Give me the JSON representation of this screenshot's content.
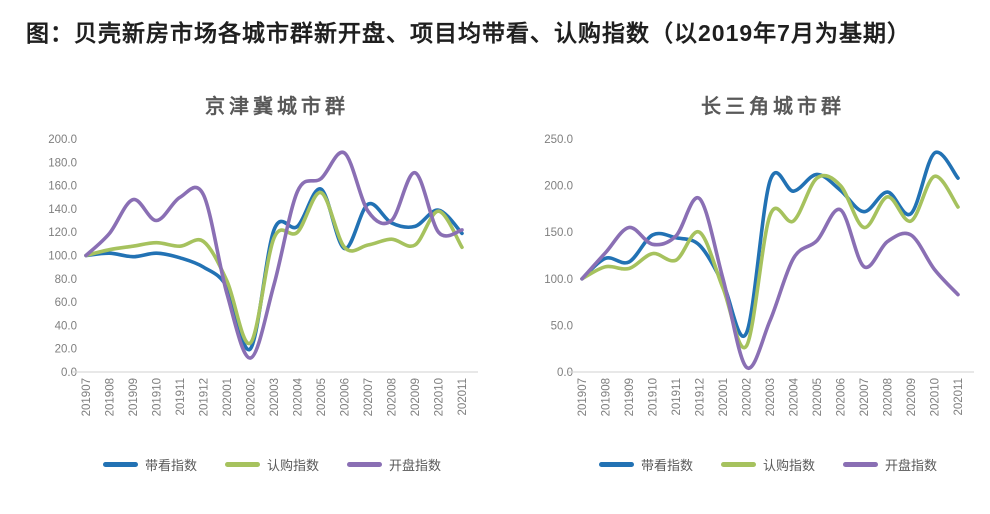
{
  "title": "图：贝壳新房市场各城市群新开盘、项目均带看、认购指数（以2019年7月为基期）",
  "colors": {
    "tour_index": "#2272B4",
    "subscription_index": "#A6C25E",
    "opening_index": "#8A6FB4",
    "axis_line": "#D9D9D9",
    "tick_text": "#7F7F7F",
    "chart_title_text": "#595959",
    "legend_text": "#595959",
    "main_title_text": "#1F1F1F"
  },
  "chart_data": [
    {
      "type": "line",
      "title": "京津冀城市群",
      "x": [
        "201907",
        "201908",
        "201909",
        "201910",
        "201911",
        "201912",
        "202001",
        "202002",
        "202003",
        "202004",
        "202005",
        "202006",
        "202007",
        "202008",
        "202009",
        "202010",
        "202011"
      ],
      "yticks": [
        "0.0",
        "20.0",
        "40.0",
        "60.0",
        "80.0",
        "100.0",
        "120.0",
        "140.0",
        "160.0",
        "180.0",
        "200.0"
      ],
      "ylim": [
        0,
        200
      ],
      "grid": false,
      "legend_position": "bottom",
      "series": [
        {
          "name": "带看指数",
          "id": "tour-index",
          "color": "#2272B4",
          "values": [
            100,
            102,
            99,
            102,
            98,
            90,
            73,
            20,
            122,
            125,
            157,
            106,
            144,
            128,
            125,
            139,
            119
          ]
        },
        {
          "name": "认购指数",
          "id": "subscription-index",
          "color": "#A6C25E",
          "values": [
            100,
            105,
            108,
            111,
            108,
            112,
            78,
            25,
            115,
            120,
            154,
            107,
            109,
            114,
            109,
            138,
            107
          ]
        },
        {
          "name": "开盘指数",
          "id": "opening-index",
          "color": "#8A6FB4",
          "values": [
            100,
            119,
            148,
            130,
            150,
            152,
            67,
            12,
            75,
            155,
            166,
            188,
            138,
            130,
            171,
            120,
            122
          ]
        }
      ]
    },
    {
      "type": "line",
      "title": "长三角城市群",
      "x": [
        "201907",
        "201908",
        "201909",
        "201910",
        "201911",
        "201912",
        "202001",
        "202002",
        "202003",
        "202004",
        "202005",
        "202006",
        "202007",
        "202008",
        "202009",
        "202010",
        "202011"
      ],
      "yticks": [
        "0.0",
        "50.0",
        "100.0",
        "150.0",
        "200.0",
        "250.0"
      ],
      "ylim": [
        0,
        250
      ],
      "grid": false,
      "legend_position": "bottom",
      "series": [
        {
          "name": "带看指数",
          "id": "tour-index",
          "color": "#2272B4",
          "values": [
            100,
            122,
            118,
            147,
            144,
            136,
            95,
            42,
            205,
            194,
            212,
            195,
            172,
            193,
            170,
            235,
            208
          ]
        },
        {
          "name": "认购指数",
          "id": "subscription-index",
          "color": "#A6C25E",
          "values": [
            100,
            113,
            111,
            127,
            120,
            150,
            90,
            28,
            168,
            162,
            208,
            200,
            155,
            188,
            162,
            210,
            177
          ]
        },
        {
          "name": "开盘指数",
          "id": "opening-index",
          "color": "#8A6FB4",
          "values": [
            100,
            128,
            155,
            137,
            146,
            186,
            100,
            5,
            55,
            122,
            141,
            174,
            113,
            140,
            147,
            110,
            83
          ]
        }
      ]
    }
  ]
}
